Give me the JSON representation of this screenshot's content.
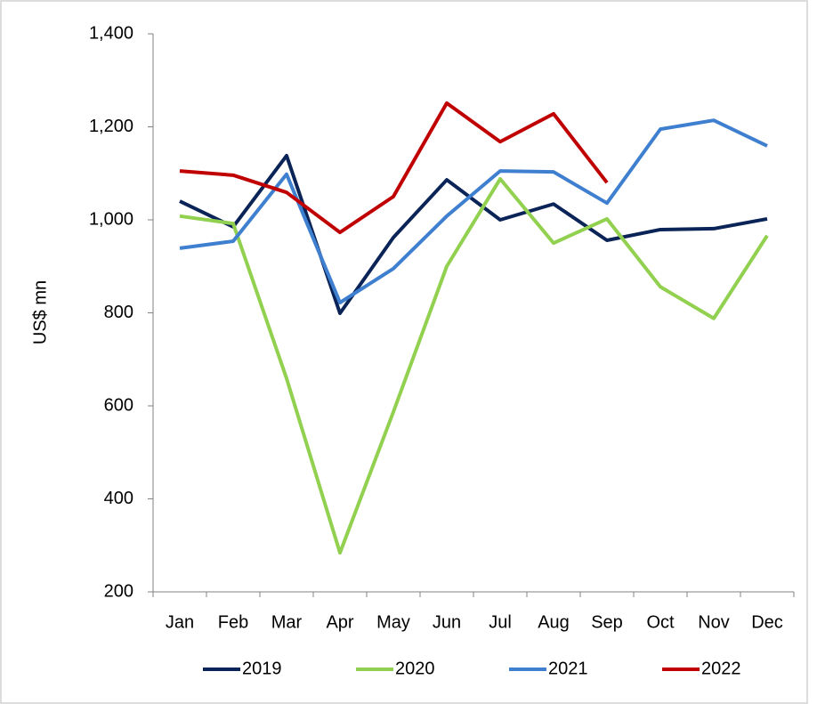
{
  "chart_data": {
    "type": "line",
    "y_label": "US$ mn",
    "categories": [
      "Jan",
      "Feb",
      "Mar",
      "Apr",
      "May",
      "Jun",
      "Jul",
      "Aug",
      "Sep",
      "Oct",
      "Nov",
      "Dec"
    ],
    "series": [
      {
        "name": "2019",
        "color": "#0b2458",
        "values": [
          1040,
          985,
          1138,
          799,
          962,
          1086,
          1000,
          1034,
          956,
          979,
          981,
          1002
        ]
      },
      {
        "name": "2020",
        "color": "#92d050",
        "values": [
          1008,
          992,
          659,
          284,
          587,
          900,
          1088,
          950,
          1002,
          856,
          788,
          966
        ]
      },
      {
        "name": "2021",
        "color": "#3f7fcf",
        "values": [
          939,
          954,
          1098,
          822,
          895,
          1008,
          1105,
          1103,
          1036,
          1195,
          1214,
          1159
        ]
      },
      {
        "name": "2022",
        "color": "#c00000",
        "values": [
          1105,
          1096,
          1059,
          973,
          1050,
          1251,
          1168,
          1228,
          1080,
          null,
          null,
          null
        ]
      }
    ],
    "ylim": [
      200,
      1400
    ],
    "yticks": [
      200,
      400,
      600,
      800,
      {
        "value": 1000,
        "label": "1,000"
      },
      {
        "value": 1200,
        "label": "1,200"
      },
      {
        "value": 1400,
        "label": "1,400"
      }
    ],
    "legend": "bottom"
  }
}
